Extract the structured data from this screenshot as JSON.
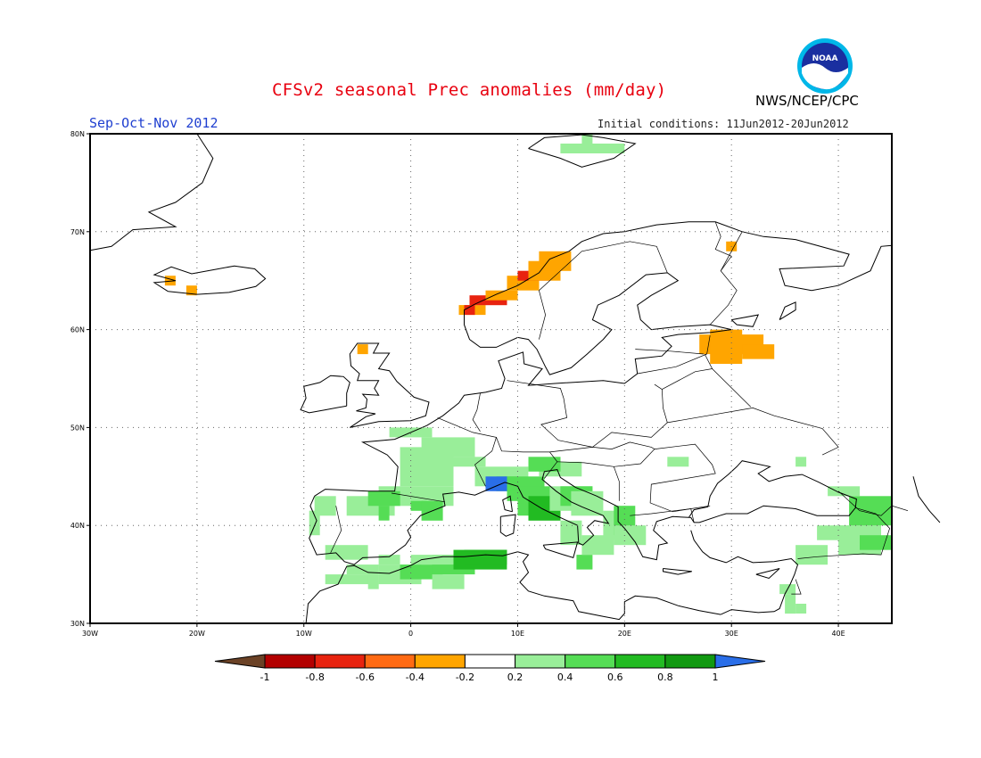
{
  "title": "CFSv2 seasonal Prec anomalies (mm/day)",
  "agency": "NWS/NCEP/CPC",
  "logo_text": "NOAA",
  "season": "Sep-Oct-Nov 2012",
  "initial_conditions": "Initial conditions: 11Jun2012-20Jun2012",
  "map": {
    "lon_range": [
      -30,
      45
    ],
    "lat_range": [
      30,
      80
    ],
    "lat_labels": [
      "80N",
      "70N",
      "60N",
      "50N",
      "40N",
      "30N"
    ],
    "lon_labels": [
      "30W",
      "20W",
      "10W",
      "0",
      "10E",
      "20E",
      "30E",
      "40E"
    ]
  },
  "colorbar": {
    "labels": [
      "-1",
      "-0.8",
      "-0.6",
      "-0.4",
      "-0.2",
      "0.2",
      "0.4",
      "0.6",
      "0.8",
      "1"
    ],
    "colors": [
      "#6b4226",
      "#b30000",
      "#e8230f",
      "#ff6a13",
      "#ffa500",
      "#ffffff",
      "#99ee99",
      "#55dd55",
      "#22bb22",
      "#119911",
      "#2a6ee8"
    ]
  }
}
